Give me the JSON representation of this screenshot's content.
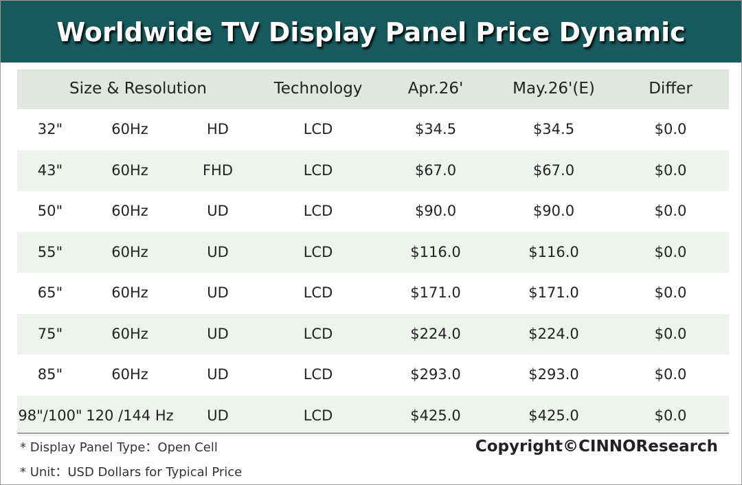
{
  "header": {
    "title": "Worldwide TV Display Panel Price Dynamic"
  },
  "table": {
    "columns": [
      "Size & Resolution",
      "Technology",
      "Apr.26'",
      "May.26'(E)",
      "Differ"
    ],
    "rows": [
      [
        "32\"",
        "60Hz",
        "HD",
        "LCD",
        "$34.5",
        "$34.5",
        "$0.0"
      ],
      [
        "43\"",
        "60Hz",
        "FHD",
        "LCD",
        "$67.0",
        "$67.0",
        "$0.0"
      ],
      [
        "50\"",
        "60Hz",
        "UD",
        "LCD",
        "$90.0",
        "$90.0",
        "$0.0"
      ],
      [
        "55\"",
        "60Hz",
        "UD",
        "LCD",
        "$116.0",
        "$116.0",
        "$0.0"
      ],
      [
        "65\"",
        "60Hz",
        "UD",
        "LCD",
        "$171.0",
        "$171.0",
        "$0.0"
      ],
      [
        "75\"",
        "60Hz",
        "UD",
        "LCD",
        "$224.0",
        "$224.0",
        "$0.0"
      ],
      [
        "85\"",
        "60Hz",
        "UD",
        "LCD",
        "$293.0",
        "$293.0",
        "$0.0"
      ],
      [
        "98\"/100\"",
        "120 /144 Hz",
        "UD",
        "LCD",
        "$425.0",
        "$425.0",
        "$0.0"
      ]
    ]
  },
  "notes": [
    "* Display Panel Type：Open Cell",
    "* Unit：USD Dollars for Typical Price"
  ],
  "copyright": "Copyright©CINNOResearch"
}
